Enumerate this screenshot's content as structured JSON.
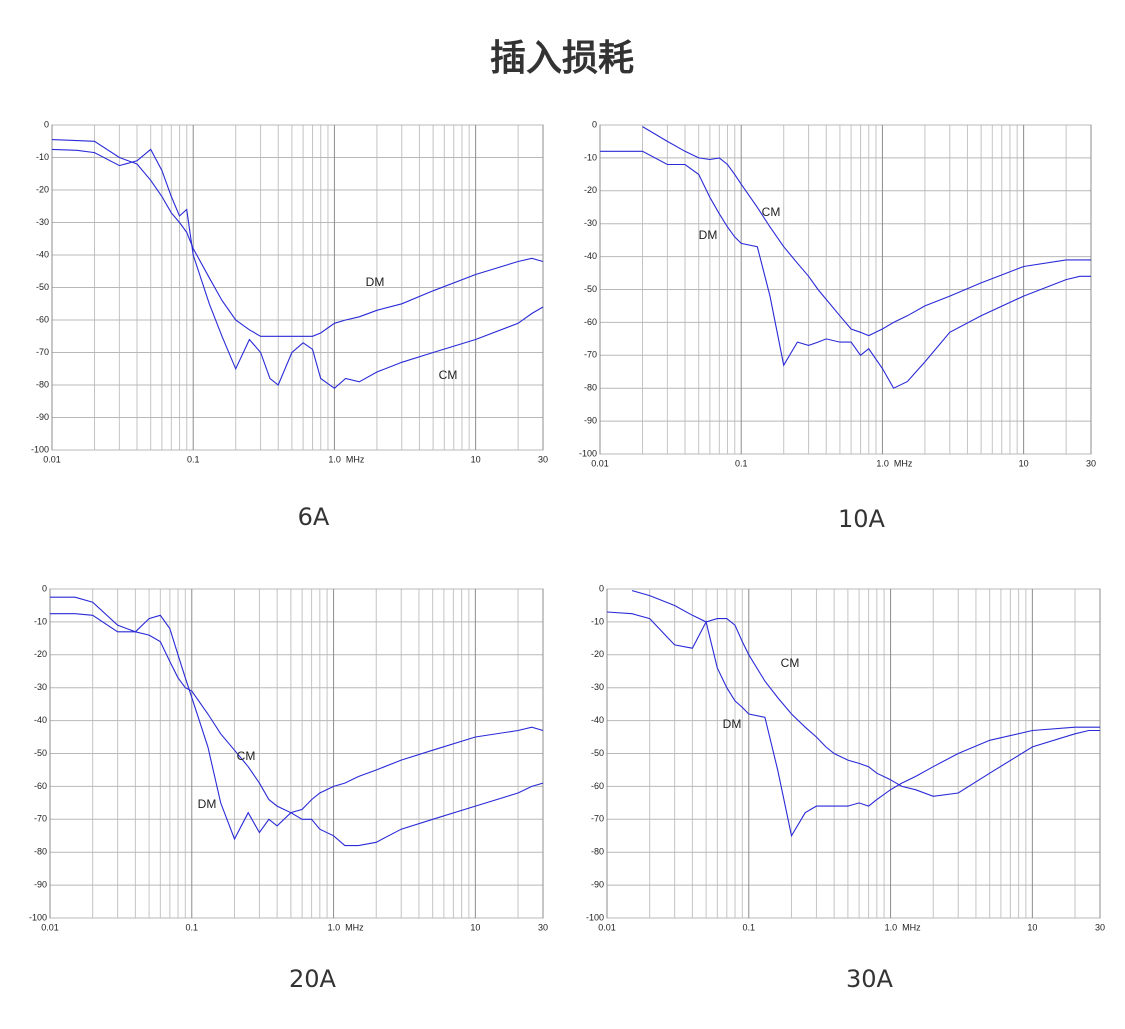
{
  "title": "插入损耗",
  "chart_data": [
    {
      "type": "line",
      "title": "6A",
      "xscale": "log",
      "grid": true,
      "minor_grid": true,
      "xlim": [
        0.01,
        30
      ],
      "ylim": [
        -100,
        0
      ],
      "xticks": [
        0.01,
        0.1,
        {
          "value": 1,
          "label": "1.0  MHz"
        },
        10,
        30
      ],
      "yticks": [
        0,
        -10,
        -20,
        -30,
        -40,
        -50,
        -60,
        -70,
        -80,
        -90,
        -100
      ],
      "x": [
        0.01,
        0.015,
        0.02,
        0.03,
        0.04,
        0.05,
        0.06,
        0.07,
        0.08,
        0.09,
        0.1,
        0.13,
        0.16,
        0.2,
        0.25,
        0.3,
        0.35,
        0.4,
        0.5,
        0.6,
        0.7,
        0.8,
        1,
        1.2,
        1.5,
        2,
        3,
        5,
        10,
        20,
        25,
        30
      ],
      "series": [
        {
          "name": "DM",
          "color": "#2a2ad8",
          "values": [
            -4.5,
            -4.8,
            -5,
            -10,
            -12,
            -17,
            -22,
            -27,
            -30,
            -33,
            -38,
            -47,
            -54,
            -60,
            -63,
            -65,
            -65,
            -65,
            -65,
            -65,
            -65,
            -64,
            -61,
            -60,
            -59,
            -57,
            -55,
            -51,
            -46,
            -42,
            -41,
            -42
          ]
        },
        {
          "name": "CM",
          "color": "#2a2ad8",
          "values": [
            -7.5,
            -7.8,
            -8.5,
            -12.5,
            -11,
            -7.5,
            -14,
            -22,
            -28,
            -26,
            -40,
            -55,
            -65,
            -75,
            -66,
            -70,
            -78,
            -80,
            -70,
            -67,
            -69,
            -78,
            -81,
            -78,
            -79,
            -76,
            -73,
            -70,
            -66,
            -61,
            -58,
            -56
          ]
        }
      ]
    },
    {
      "type": "line",
      "title": "10A",
      "xscale": "log",
      "grid": true,
      "minor_grid": true,
      "xlim": [
        0.01,
        30
      ],
      "ylim": [
        -100,
        0
      ],
      "xticks": [
        0.01,
        0.1,
        {
          "value": 1,
          "label": "1.0  MHz"
        },
        10,
        30
      ],
      "yticks": [
        0,
        -10,
        -20,
        -30,
        -40,
        -50,
        -60,
        -70,
        -80,
        -90,
        -100
      ],
      "x": [
        0.01,
        0.015,
        0.02,
        0.03,
        0.04,
        0.05,
        0.06,
        0.07,
        0.08,
        0.09,
        0.1,
        0.13,
        0.16,
        0.2,
        0.25,
        0.3,
        0.35,
        0.4,
        0.5,
        0.6,
        0.7,
        0.8,
        1,
        1.2,
        1.5,
        2,
        3,
        5,
        10,
        20,
        25,
        30
      ],
      "series": [
        {
          "name": "CM",
          "color": "#2a2ad8",
          "values": [
            null,
            null,
            -0.5,
            -5,
            -8,
            -10,
            -10.5,
            -10,
            -12,
            -15,
            -18,
            -25,
            -31,
            -37,
            -42,
            -46,
            -50,
            -53,
            -58,
            -62,
            -63,
            -64,
            -62,
            -60,
            -58,
            -55,
            -52,
            -48,
            -43,
            -41,
            -41,
            -41
          ]
        },
        {
          "name": "DM",
          "color": "#2a2ad8",
          "values": [
            -8,
            -8,
            -8,
            -12,
            -12,
            -15,
            -22,
            -27,
            -31,
            -34,
            -36,
            -37,
            -52,
            -73,
            -66,
            -67,
            -66,
            -65,
            -66,
            -66,
            -70,
            -68,
            -74,
            -80,
            -78,
            -72,
            -63,
            -58,
            -52,
            -47,
            -46,
            -46
          ]
        }
      ]
    },
    {
      "type": "line",
      "title": "20A",
      "xscale": "log",
      "grid": true,
      "minor_grid": true,
      "xlim": [
        0.01,
        30
      ],
      "ylim": [
        -100,
        0
      ],
      "xticks": [
        0.01,
        0.1,
        {
          "value": 1,
          "label": "1.0  MHz"
        },
        10,
        30
      ],
      "yticks": [
        0,
        -10,
        -20,
        -30,
        -40,
        -50,
        -60,
        -70,
        -80,
        -90,
        -100
      ],
      "x": [
        0.01,
        0.015,
        0.02,
        0.03,
        0.04,
        0.05,
        0.06,
        0.07,
        0.08,
        0.09,
        0.1,
        0.13,
        0.16,
        0.2,
        0.25,
        0.3,
        0.35,
        0.4,
        0.5,
        0.6,
        0.7,
        0.8,
        1,
        1.2,
        1.5,
        2,
        3,
        5,
        10,
        20,
        25,
        30
      ],
      "series": [
        {
          "name": "CM",
          "color": "#2a2ad8",
          "values": [
            -2.5,
            -2.5,
            -4,
            -11,
            -13,
            -14,
            -16,
            -22,
            -27,
            -30,
            -31,
            -38,
            -44,
            -49,
            -54,
            -59,
            -64,
            -66,
            -68,
            -67,
            -64,
            -62,
            -60,
            -59,
            -57,
            -55,
            -52,
            -49,
            -45,
            -43,
            -42,
            -43
          ]
        },
        {
          "name": "DM",
          "color": "#2a2ad8",
          "values": [
            -7.5,
            -7.5,
            -8,
            -13,
            -13,
            -9,
            -8,
            -12,
            -20,
            -27,
            -33,
            -48,
            -65,
            -76,
            -68,
            -74,
            -70,
            -72,
            -68,
            -70,
            -70,
            -73,
            -75,
            -78,
            -78,
            -77,
            -73,
            -70,
            -66,
            -62,
            -60,
            -59
          ]
        }
      ]
    },
    {
      "type": "line",
      "title": "30A",
      "xscale": "log",
      "grid": true,
      "minor_grid": true,
      "xlim": [
        0.01,
        30
      ],
      "ylim": [
        -100,
        0
      ],
      "xticks": [
        0.01,
        0.1,
        {
          "value": 1,
          "label": "1.0  MHz"
        },
        10,
        30
      ],
      "yticks": [
        0,
        -10,
        -20,
        -30,
        -40,
        -50,
        -60,
        -70,
        -80,
        -90,
        -100
      ],
      "x": [
        0.01,
        0.015,
        0.02,
        0.03,
        0.04,
        0.05,
        0.06,
        0.07,
        0.08,
        0.09,
        0.1,
        0.13,
        0.16,
        0.2,
        0.25,
        0.3,
        0.35,
        0.4,
        0.5,
        0.6,
        0.7,
        0.8,
        1,
        1.2,
        1.5,
        2,
        3,
        5,
        10,
        20,
        25,
        30
      ],
      "series": [
        {
          "name": "CM",
          "color": "#2a2ad8",
          "values": [
            null,
            -0.5,
            -2,
            -5,
            -8,
            -10,
            -9,
            -9,
            -11,
            -16,
            -20,
            -28,
            -33,
            -38,
            -42,
            -45,
            -48,
            -50,
            -52,
            -53,
            -54,
            -56,
            -58,
            -60,
            -61,
            -63,
            -62,
            -56,
            -48,
            -44,
            -43,
            -43
          ]
        },
        {
          "name": "DM",
          "color": "#2a2ad8",
          "values": [
            -7,
            -7.5,
            -9,
            -17,
            -18,
            -10,
            -24,
            -30,
            -34,
            -36,
            -38,
            -39,
            -55,
            -75,
            -68,
            -66,
            -66,
            -66,
            -66,
            -65,
            -66,
            -64,
            -61,
            -59,
            -57,
            -54,
            -50,
            -46,
            -43,
            -42,
            -42,
            -42
          ]
        }
      ]
    }
  ]
}
